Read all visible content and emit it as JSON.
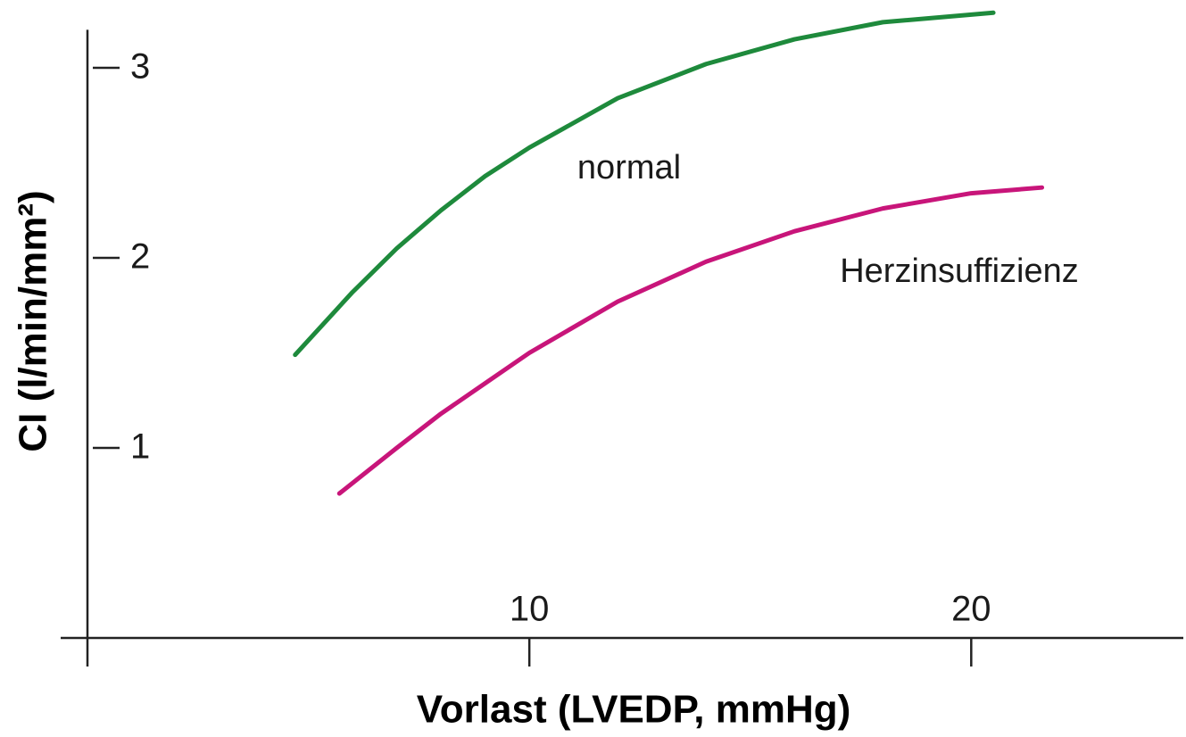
{
  "chart_data": {
    "type": "line",
    "x_label": "Vorlast (LVEDP, mmHg)",
    "y_label": "CI (l/min/mm²)",
    "xlim": [
      0,
      24.8
    ],
    "xticks": [
      10,
      20
    ],
    "ylim": [
      0,
      3.2
    ],
    "yticks": [
      1,
      2,
      3
    ],
    "grid": false,
    "series": [
      {
        "color": "#1e8a3c",
        "x": [
          4.7,
          6,
          7,
          8,
          9,
          10,
          12,
          14,
          16,
          18,
          20.5
        ],
        "values": [
          1.49,
          1.82,
          2.05,
          2.25,
          2.43,
          2.58,
          2.84,
          3.02,
          3.15,
          3.24,
          3.29
        ]
      },
      {
        "color": "#c8157a",
        "x": [
          5.7,
          7,
          8,
          9,
          10,
          12,
          14,
          16,
          18,
          20,
          21.6
        ],
        "values": [
          0.76,
          1.0,
          1.18,
          1.34,
          1.5,
          1.77,
          1.98,
          2.14,
          2.26,
          2.34,
          2.37
        ]
      }
    ],
    "annotations": [
      "normal",
      "Herzinsuffizienz"
    ]
  }
}
